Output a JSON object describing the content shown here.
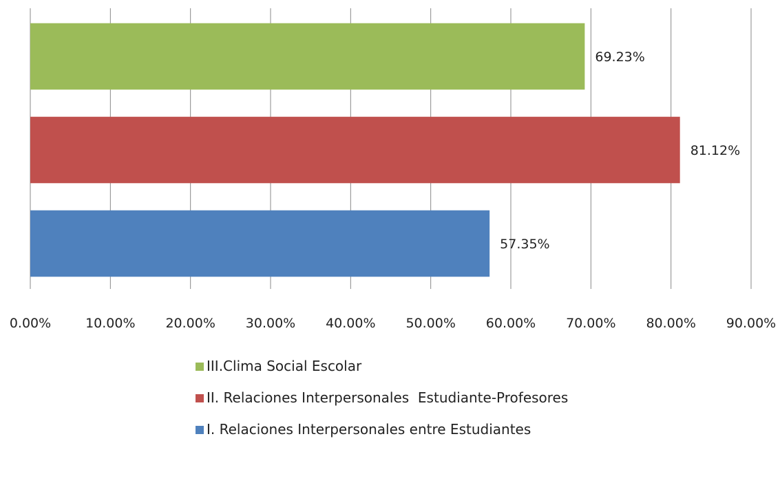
{
  "chart_data": {
    "type": "bar",
    "orientation": "horizontal",
    "categories": [
      "III.Clima Social Escolar",
      "II. Relaciones Interpersonales  Estudiante-Profesores",
      "I. Relaciones Interpersonales entre Estudiantes"
    ],
    "values": [
      69.23,
      81.12,
      57.35
    ],
    "value_labels": [
      "69.23%",
      "81.12%",
      "57.35%"
    ],
    "colors": [
      "#9BBB59",
      "#C0504D",
      "#4F81BD"
    ],
    "xlim": [
      0,
      90
    ],
    "xticks": [
      0,
      10,
      20,
      30,
      40,
      50,
      60,
      70,
      80,
      90
    ],
    "xtick_labels": [
      "0.00%",
      "10.00%",
      "20.00%",
      "30.00%",
      "40.00%",
      "50.00%",
      "60.00%",
      "70.00%",
      "80.00%",
      "90.00%"
    ],
    "grid": true,
    "legend_position": "bottom"
  }
}
